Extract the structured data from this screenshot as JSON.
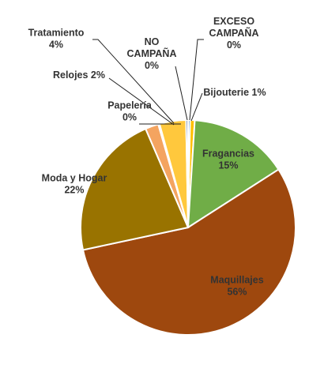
{
  "chart_data": {
    "type": "pie",
    "title": "",
    "legend": "none",
    "slices": [
      {
        "name": "EXCESO CAMPAÑA",
        "value": 0.3,
        "label": "EXCESO\nCAMPAÑA\n0%",
        "color": "#2e75b6"
      },
      {
        "name": "Bijouterie",
        "value": 0.7,
        "label": "Bijouterie 1%",
        "color": "#ffc000"
      },
      {
        "name": "Fragancias",
        "value": 15,
        "label": "Fragancias\n15%",
        "color": "#70ad47"
      },
      {
        "name": "Maquillajes",
        "value": 56,
        "label": "Maquillajes\n56%",
        "color": "#9e480e"
      },
      {
        "name": "Moda y Hogar",
        "value": 22,
        "label": "Moda y Hogar\n22%",
        "color": "#997300"
      },
      {
        "name": "Relojes",
        "value": 2,
        "label": "Relojes 2%",
        "color": "#f4a460"
      },
      {
        "name": "Papelería",
        "value": 0.2,
        "label": "Papelería\n0%",
        "color": "#a5a5a5"
      },
      {
        "name": "Tratamiento",
        "value": 4,
        "label": "Tratamiento\n4%",
        "color": "#ffc83d"
      },
      {
        "name": "NO CAMPAÑA",
        "value": 0.3,
        "label": "NO\nCAMPAÑA\n0%",
        "color": "#264478"
      }
    ]
  }
}
